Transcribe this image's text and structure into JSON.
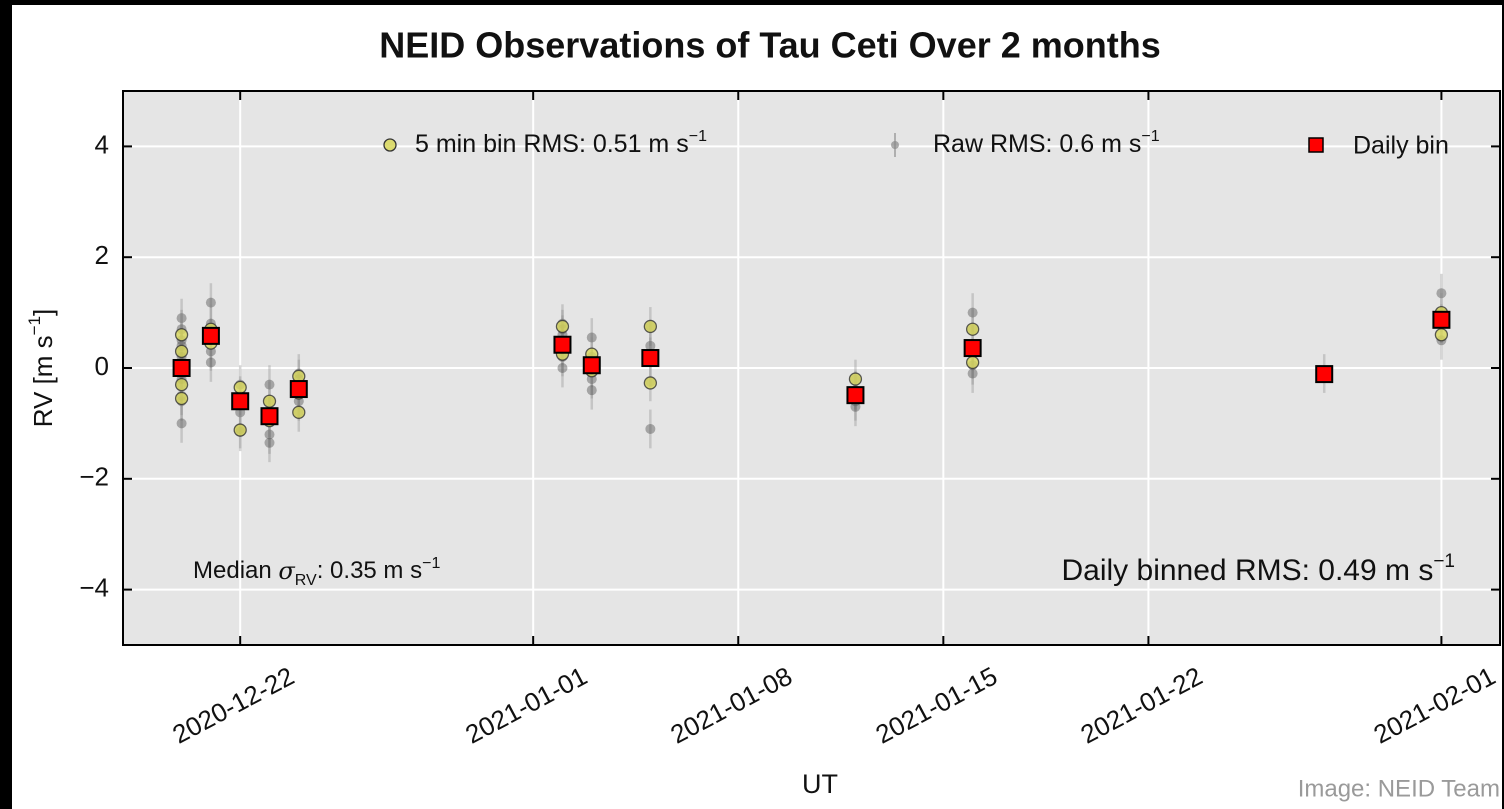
{
  "chart_data": {
    "type": "scatter",
    "title": "NEID Observations of Tau Ceti Over 2 months",
    "xlabel": "UT",
    "ylabel": [
      "RV [m s",
      "−1",
      "]"
    ],
    "xlim": [
      "2020-12-18",
      "2021-02-03"
    ],
    "ylim": [
      -5,
      5
    ],
    "xticks": [
      "2020-12-22",
      "2021-01-01",
      "2021-01-08",
      "2021-01-15",
      "2021-01-22",
      "2021-02-01"
    ],
    "yticks": [
      {
        "value": -4,
        "label": "−4"
      },
      {
        "value": -2,
        "label": "−2"
      },
      0,
      2,
      4
    ],
    "grid": true,
    "series": [
      {
        "name": [
          "Raw RMS: 0.6 m s",
          "−1"
        ],
        "marker": "errorbar",
        "color": "#8a8a8a",
        "error": 0.35,
        "x": [
          "2020-12-20",
          "2020-12-20",
          "2020-12-20",
          "2020-12-20",
          "2020-12-20",
          "2020-12-20",
          "2020-12-20",
          "2020-12-20",
          "2020-12-20",
          "2020-12-20",
          "2020-12-20",
          "2020-12-20",
          "2020-12-20",
          "2020-12-21",
          "2020-12-21",
          "2020-12-21",
          "2020-12-21",
          "2020-12-21",
          "2020-12-22",
          "2020-12-22",
          "2020-12-22",
          "2020-12-22",
          "2020-12-22",
          "2020-12-23",
          "2020-12-23",
          "2020-12-23",
          "2020-12-23",
          "2020-12-23",
          "2020-12-24",
          "2020-12-24",
          "2020-12-24",
          "2020-12-24",
          "2020-12-24",
          "2021-01-02",
          "2021-01-02",
          "2021-01-02",
          "2021-01-02",
          "2021-01-02",
          "2021-01-02",
          "2021-01-03",
          "2021-01-03",
          "2021-01-03",
          "2021-01-03",
          "2021-01-03",
          "2021-01-05",
          "2021-01-05",
          "2021-01-05",
          "2021-01-05",
          "2021-01-05",
          "2021-01-12",
          "2021-01-12",
          "2021-01-12",
          "2021-01-12",
          "2021-01-16",
          "2021-01-16",
          "2021-01-16",
          "2021-01-16",
          "2021-01-16",
          "2021-01-28",
          "2021-02-01",
          "2021-02-01",
          "2021-02-01",
          "2021-02-01"
        ],
        "values": [
          0.9,
          0.7,
          0.5,
          0.3,
          0.1,
          -0.1,
          -0.3,
          -0.5,
          -0.6,
          -1.0,
          0.4,
          0.2,
          -0.2,
          1.18,
          0.8,
          0.5,
          0.3,
          0.1,
          -0.3,
          -0.5,
          -0.8,
          -1.1,
          -1.15,
          -0.3,
          -0.6,
          -0.9,
          -1.2,
          -1.35,
          -0.1,
          -0.2,
          -0.4,
          -0.6,
          -0.8,
          0.8,
          0.6,
          0.4,
          0.2,
          0.0,
          0.7,
          0.55,
          0.2,
          0.0,
          -0.2,
          -0.4,
          0.75,
          0.4,
          0.2,
          -0.25,
          -1.1,
          -0.2,
          -0.4,
          -0.6,
          -0.7,
          1.0,
          0.7,
          0.4,
          0.05,
          -0.1,
          -0.1,
          1.35,
          1.0,
          0.8,
          0.5
        ]
      },
      {
        "name": [
          "5 min bin RMS: 0.51 m s",
          "−1"
        ],
        "marker": "circle",
        "color": "#d9d85a",
        "x": [
          "2020-12-20",
          "2020-12-20",
          "2020-12-20",
          "2020-12-20",
          "2020-12-20",
          "2020-12-21",
          "2020-12-21",
          "2020-12-22",
          "2020-12-22",
          "2020-12-22",
          "2020-12-23",
          "2020-12-23",
          "2020-12-24",
          "2020-12-24",
          "2020-12-24",
          "2021-01-02",
          "2021-01-02",
          "2021-01-02",
          "2021-01-03",
          "2021-01-03",
          "2021-01-05",
          "2021-01-05",
          "2021-01-12",
          "2021-01-12",
          "2021-01-16",
          "2021-01-16",
          "2021-02-01",
          "2021-02-01"
        ],
        "values": [
          0.6,
          0.3,
          0.0,
          -0.3,
          -0.55,
          0.7,
          0.45,
          -0.35,
          -0.6,
          -1.12,
          -0.6,
          -0.95,
          -0.15,
          -0.45,
          -0.8,
          0.75,
          0.45,
          0.25,
          0.25,
          -0.05,
          0.75,
          -0.27,
          -0.2,
          -0.5,
          0.7,
          0.1,
          1.0,
          0.6
        ]
      },
      {
        "name": "Daily bin",
        "marker": "square",
        "color": "#ff0000",
        "x": [
          "2020-12-20",
          "2020-12-21",
          "2020-12-22",
          "2020-12-23",
          "2020-12-24",
          "2021-01-02",
          "2021-01-03",
          "2021-01-05",
          "2021-01-12",
          "2021-01-16",
          "2021-01-28",
          "2021-02-01"
        ],
        "values": [
          0.0,
          0.58,
          -0.6,
          -0.87,
          -0.38,
          0.42,
          0.05,
          0.18,
          -0.49,
          0.36,
          -0.11,
          0.87
        ]
      }
    ],
    "annotations": [
      [
        "Median ",
        "σ",
        "RV",
        ": 0.35 m s",
        "−1"
      ],
      [
        "Daily binned RMS: 0.49 m s",
        "−1"
      ]
    ],
    "credit": "Image: NEID Team"
  }
}
